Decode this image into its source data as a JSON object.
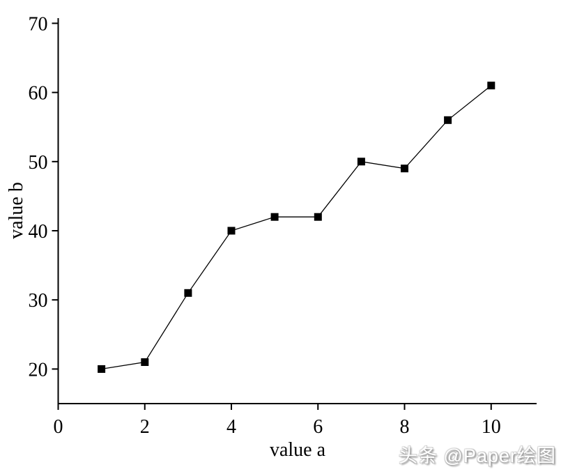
{
  "watermark": {
    "text": "头条 @Paper绘图"
  },
  "chart_data": {
    "type": "line",
    "title": "",
    "xlabel": "value a",
    "ylabel": "value b",
    "x": [
      1,
      2,
      3,
      4,
      5,
      6,
      7,
      8,
      9,
      10
    ],
    "series": [
      {
        "name": "value b",
        "values": [
          20,
          21,
          31,
          40,
          42,
          42,
          50,
          49,
          56,
          61
        ]
      }
    ],
    "xlim": [
      0,
      11.05
    ],
    "ylim": [
      15,
      70.75
    ],
    "xticks": [
      0,
      2,
      4,
      6,
      8,
      10
    ],
    "yticks": [
      20,
      30,
      40,
      50,
      60,
      70
    ],
    "grid": false,
    "legend": null,
    "marker": "square",
    "marker_size": 11,
    "line_color": "#000000",
    "marker_color": "#000000",
    "axis_color": "#000000",
    "background_color": "#ffffff"
  }
}
